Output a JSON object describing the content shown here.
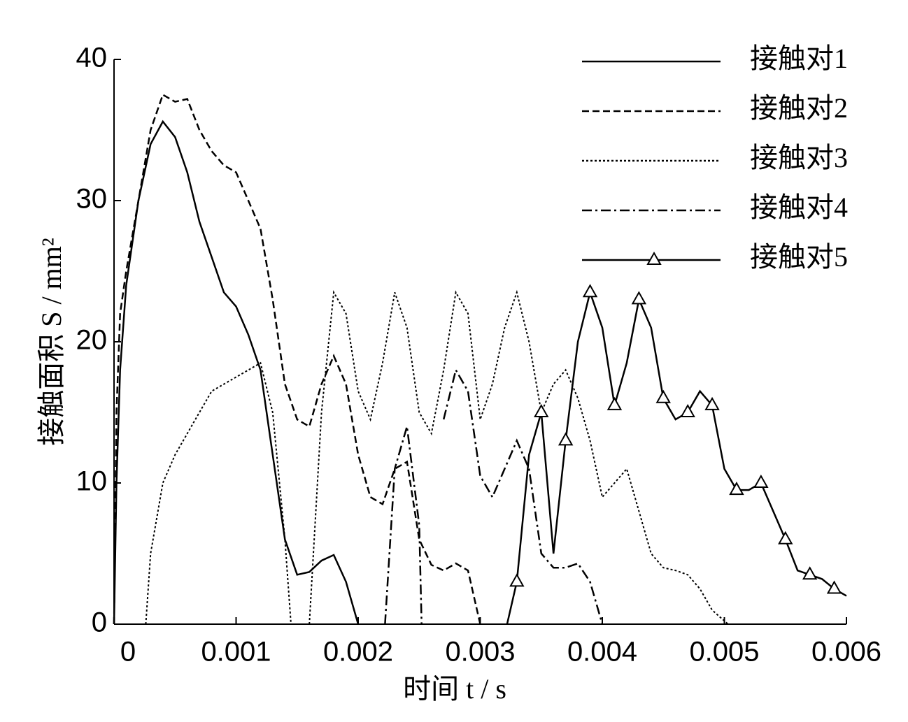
{
  "chart_data": {
    "type": "line",
    "xlabel": "时间 t / s",
    "ylabel": "接触面积 S / mm²",
    "xlim": [
      0,
      0.006
    ],
    "ylim": [
      0,
      40
    ],
    "xticks": [
      0,
      0.001,
      0.002,
      0.003,
      0.004,
      0.005,
      0.006
    ],
    "yticks": [
      0,
      10,
      20,
      30,
      40
    ],
    "legend": "upper right",
    "series": [
      {
        "name": "接触对1",
        "color": "#000000",
        "dash": "solid",
        "x": [
          0,
          2e-05,
          5e-05,
          0.0001,
          0.0002,
          0.0003,
          0.0004,
          0.0005,
          0.0006,
          0.0007,
          0.0008,
          0.0009,
          0.001,
          0.0011,
          0.0012,
          0.0013,
          0.0014,
          0.0015,
          0.0016,
          0.0017,
          0.0018,
          0.0019,
          0.002
        ],
        "values": [
          0,
          10,
          18,
          24,
          30,
          34,
          35.6,
          34.5,
          32,
          28.5,
          26,
          23.5,
          22.5,
          20.5,
          18,
          12,
          6,
          3.5,
          3.7,
          4.5,
          4.9,
          3,
          0
        ]
      },
      {
        "name": "接触对2",
        "color": "#000000",
        "dash": "dashed",
        "x": [
          0,
          2e-05,
          5e-05,
          0.0001,
          0.0002,
          0.0003,
          0.0004,
          0.0005,
          0.0006,
          0.0007,
          0.0008,
          0.0009,
          0.001,
          0.0011,
          0.0012,
          0.0013,
          0.0014,
          0.0015,
          0.0016,
          0.0017,
          0.0018,
          0.0019,
          0.002,
          0.0021,
          0.0022,
          0.0023,
          0.0024,
          0.0025,
          0.0026,
          0.0027,
          0.0028,
          0.0029,
          0.003
        ],
        "values": [
          0,
          15,
          22,
          25,
          30,
          35,
          37.5,
          37,
          37.2,
          35,
          33.5,
          32.5,
          32,
          30,
          28,
          23,
          17,
          14.5,
          14,
          17,
          19,
          17,
          12,
          9,
          8.5,
          11,
          11.5,
          6,
          4.2,
          3.8,
          4.3,
          3.8,
          0
        ]
      },
      {
        "name": "接触对3",
        "color": "#000000",
        "dash": "dotted",
        "x": [
          0.00026,
          0.0003,
          0.0004,
          0.0005,
          0.0006,
          0.0007,
          0.0008,
          0.0009,
          0.001,
          0.0011,
          0.0012,
          0.0013,
          0.0014,
          0.00145,
          0.0015,
          0.0016,
          0.0017,
          0.0018,
          0.0019,
          0.002,
          0.0021,
          0.0022,
          0.0023,
          0.0024,
          0.0025,
          0.0026,
          0.0027,
          0.0028,
          0.0029,
          0.003,
          0.0031,
          0.0032,
          0.0033,
          0.0034,
          0.0035,
          0.0036,
          0.0037,
          0.0038,
          0.0039,
          0.004,
          0.0041,
          0.0042,
          0.0043,
          0.0044,
          0.0045,
          0.0046,
          0.0047,
          0.0048,
          0.0049,
          0.00503
        ],
        "values": [
          0,
          5,
          10,
          12,
          13.5,
          15,
          16.5,
          17,
          17.5,
          18,
          18.5,
          15,
          6,
          0,
          null,
          0,
          15,
          23.5,
          22,
          16.5,
          14.5,
          18.5,
          23.5,
          21,
          15,
          13.5,
          18,
          23.5,
          22,
          14.5,
          17,
          21,
          23.5,
          20,
          15,
          17,
          18,
          16,
          13,
          9,
          10,
          11,
          8,
          5,
          4,
          3.8,
          3.5,
          2.5,
          1,
          0
        ]
      },
      {
        "name": "接触对4",
        "color": "#000000",
        "dash": "dashdot",
        "x": [
          0.00222,
          0.0023,
          0.0024,
          0.0025,
          0.00252,
          0.0026,
          0.0027,
          0.0028,
          0.0029,
          0.003,
          0.0031,
          0.0032,
          0.0033,
          0.0034,
          0.0035,
          0.0036,
          0.0037,
          0.0038,
          0.0039,
          0.004
        ],
        "values": [
          0,
          11,
          14,
          7,
          0,
          null,
          14.5,
          18,
          16.5,
          10.5,
          9,
          11,
          13,
          11,
          5,
          4,
          4,
          4.3,
          3,
          0
        ]
      },
      {
        "name": "接触对5",
        "color": "#000000",
        "dash": "solid",
        "marker": "triangle",
        "x": [
          0.00322,
          0.0033,
          0.0034,
          0.0035,
          0.0036,
          0.0037,
          0.0038,
          0.0039,
          0.004,
          0.0041,
          0.0042,
          0.0043,
          0.0044,
          0.0045,
          0.0046,
          0.0047,
          0.0048,
          0.0049,
          0.005,
          0.0051,
          0.0052,
          0.0053,
          0.0054,
          0.0055,
          0.0056,
          0.0057,
          0.0058,
          0.0059,
          0.006
        ],
        "values": [
          0,
          3,
          12,
          15,
          5,
          13,
          20,
          23.5,
          21,
          15.5,
          18.5,
          23,
          21,
          16,
          14.5,
          15,
          16.5,
          15.5,
          11,
          9.5,
          9.5,
          10,
          8,
          6,
          3.8,
          3.5,
          3.2,
          2.5,
          2
        ]
      }
    ]
  }
}
